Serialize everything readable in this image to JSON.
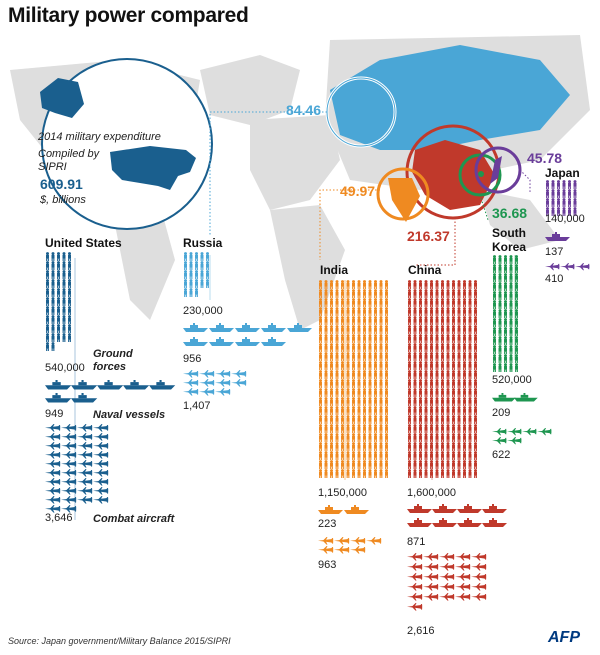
{
  "title": "Military power compared",
  "legend": {
    "caption": "2014 military expenditure",
    "compiled": "Compiled by SIPRI",
    "us_value": "609.91",
    "unit": "$, billions"
  },
  "categories": {
    "ground": "Ground forces",
    "naval": "Naval vessels",
    "aircraft": "Combat aircraft"
  },
  "countries": {
    "us": {
      "name": "United States",
      "spend": "609.91",
      "ground": "540,000",
      "naval": "949",
      "aircraft": "3,646",
      "color": "#1a5f8e"
    },
    "russia": {
      "name": "Russia",
      "spend": "84.46",
      "ground": "230,000",
      "naval": "956",
      "aircraft": "1,407",
      "color": "#4aa6d6"
    },
    "india": {
      "name": "India",
      "spend": "49.97",
      "ground": "1,150,000",
      "naval": "223",
      "aircraft": "963",
      "color": "#ef8a21"
    },
    "china": {
      "name": "China",
      "spend": "216.37",
      "ground": "1,600,000",
      "naval": "871",
      "aircraft": "2,616",
      "color": "#c0392b"
    },
    "skorea": {
      "name": "South Korea",
      "name_line1": "South",
      "name_line2": "Korea",
      "spend": "36.68",
      "ground": "520,000",
      "naval": "209",
      "aircraft": "622",
      "color": "#1e9650"
    },
    "japan": {
      "name": "Japan",
      "spend": "45.78",
      "ground": "140,000",
      "naval": "137",
      "aircraft": "410",
      "color": "#6a3d9a"
    }
  },
  "source": "Source: Japan government/Military Balance 2015/SIPRI",
  "logo": "AFP"
}
